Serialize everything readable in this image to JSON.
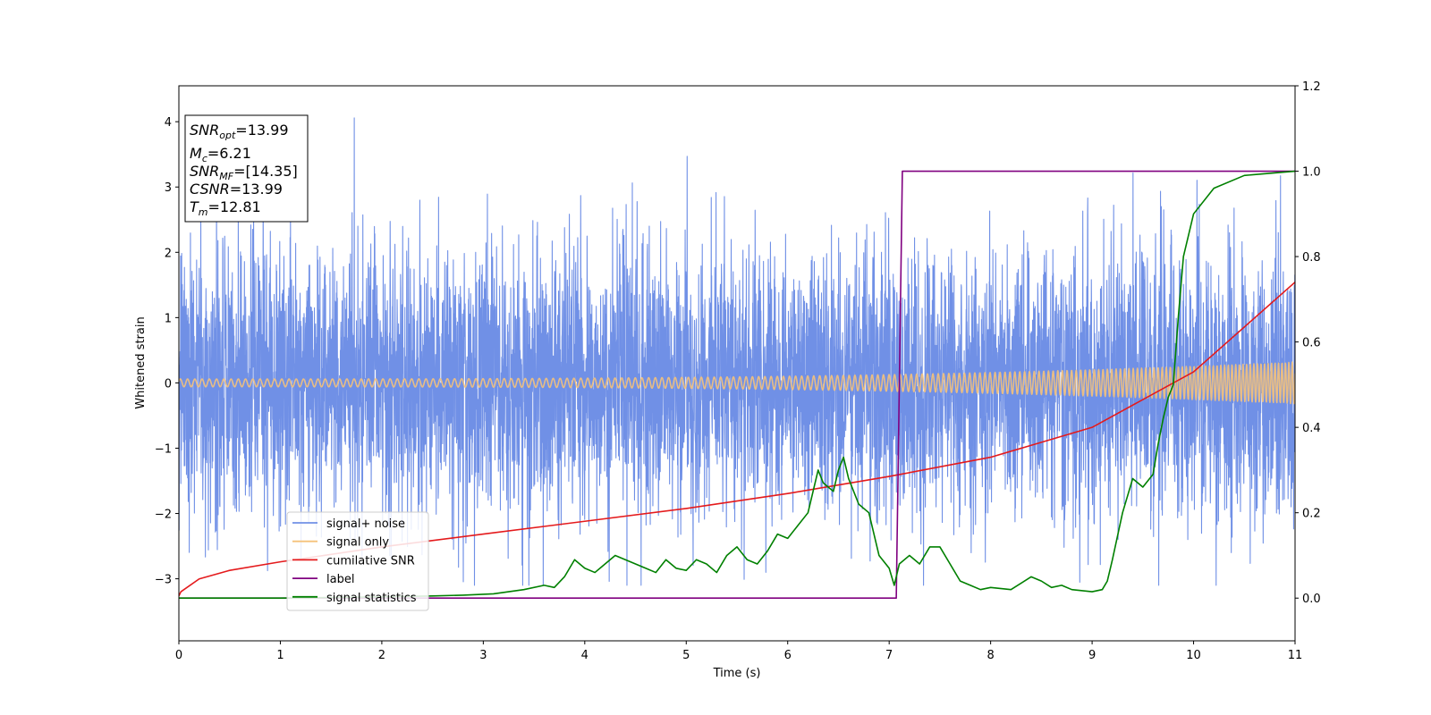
{
  "chart_data": {
    "type": "line",
    "xlabel": "Time (s)",
    "ylabel": "Whitened strain",
    "xlim": [
      0,
      11
    ],
    "ylim": [
      -3.95,
      4.55
    ],
    "y2lim": [
      -0.1,
      1.2
    ],
    "xticks": [
      "0",
      "1",
      "2",
      "3",
      "4",
      "5",
      "6",
      "7",
      "8",
      "9",
      "10",
      "11"
    ],
    "yticks": [
      "−3",
      "−2",
      "−1",
      "0",
      "1",
      "2",
      "3",
      "4"
    ],
    "y2ticks": [
      "0.0",
      "0.2",
      "0.4",
      "0.6",
      "0.8",
      "1.0",
      "1.2"
    ],
    "legend_location": "lower-left",
    "grid": false,
    "annotation": {
      "lines": [
        {
          "main": "SNR",
          "sub": "opt",
          "rest": "=13.99"
        },
        {
          "main": "M",
          "sub": "c",
          "rest": "=6.21"
        },
        {
          "main": "SNR",
          "sub": "MF",
          "rest": "=[14.35]"
        },
        {
          "main": "CSNR",
          "sub": "",
          "rest": "=13.99"
        },
        {
          "main": "T",
          "sub": "m",
          "rest": "=12.81"
        }
      ]
    },
    "series": [
      {
        "name": "signal+ noise",
        "color": "#7090e6",
        "axis": "left",
        "kind": "noise",
        "sigma": 1.0,
        "range": [
          -3.1,
          4.18
        ]
      },
      {
        "name": "signal only",
        "color": "#f5c27a",
        "axis": "left",
        "kind": "chirp",
        "amplitude_start": 0.06,
        "amplitude_end": 0.32
      },
      {
        "name": "cumilative SNR",
        "color": "#e41a1c",
        "axis": "right",
        "x": [
          0,
          0.02,
          0.2,
          0.5,
          1,
          2,
          3,
          4,
          5,
          6,
          7,
          8,
          9,
          10,
          11
        ],
        "y": [
          0.005,
          0.015,
          0.045,
          0.065,
          0.085,
          0.12,
          0.15,
          0.18,
          0.21,
          0.245,
          0.285,
          0.33,
          0.4,
          0.53,
          0.74
        ]
      },
      {
        "name": "label",
        "color": "#800080",
        "axis": "right",
        "x": [
          0,
          7.07,
          7.13,
          11
        ],
        "y": [
          0,
          0,
          1,
          1
        ]
      },
      {
        "name": "signal statistics",
        "color": "#008000",
        "axis": "right",
        "x": [
          0,
          1,
          2,
          2.5,
          2.8,
          3.1,
          3.4,
          3.6,
          3.7,
          3.8,
          3.9,
          4.0,
          4.1,
          4.2,
          4.3,
          4.4,
          4.5,
          4.6,
          4.7,
          4.8,
          4.9,
          5.0,
          5.1,
          5.2,
          5.3,
          5.4,
          5.5,
          5.6,
          5.7,
          5.8,
          5.9,
          6.0,
          6.1,
          6.2,
          6.3,
          6.35,
          6.45,
          6.5,
          6.55,
          6.6,
          6.7,
          6.8,
          6.9,
          7.0,
          7.05,
          7.1,
          7.2,
          7.3,
          7.4,
          7.5,
          7.6,
          7.7,
          7.8,
          7.9,
          8.0,
          8.2,
          8.4,
          8.5,
          8.6,
          8.7,
          8.8,
          9.0,
          9.1,
          9.15,
          9.2,
          9.3,
          9.4,
          9.5,
          9.6,
          9.65,
          9.7,
          9.75,
          9.8,
          9.85,
          9.9,
          10.0,
          10.2,
          10.5,
          11
        ],
        "y": [
          0,
          0,
          0.003,
          0.005,
          0.007,
          0.01,
          0.02,
          0.03,
          0.025,
          0.05,
          0.09,
          0.07,
          0.06,
          0.08,
          0.1,
          0.09,
          0.08,
          0.07,
          0.06,
          0.09,
          0.07,
          0.065,
          0.09,
          0.08,
          0.06,
          0.1,
          0.12,
          0.09,
          0.08,
          0.11,
          0.15,
          0.14,
          0.17,
          0.2,
          0.3,
          0.27,
          0.25,
          0.3,
          0.33,
          0.28,
          0.22,
          0.2,
          0.1,
          0.07,
          0.03,
          0.08,
          0.1,
          0.08,
          0.12,
          0.12,
          0.08,
          0.04,
          0.03,
          0.02,
          0.025,
          0.02,
          0.05,
          0.04,
          0.025,
          0.03,
          0.02,
          0.015,
          0.02,
          0.04,
          0.09,
          0.2,
          0.28,
          0.26,
          0.29,
          0.36,
          0.42,
          0.47,
          0.5,
          0.66,
          0.8,
          0.9,
          0.96,
          0.99,
          1.0
        ]
      }
    ]
  }
}
